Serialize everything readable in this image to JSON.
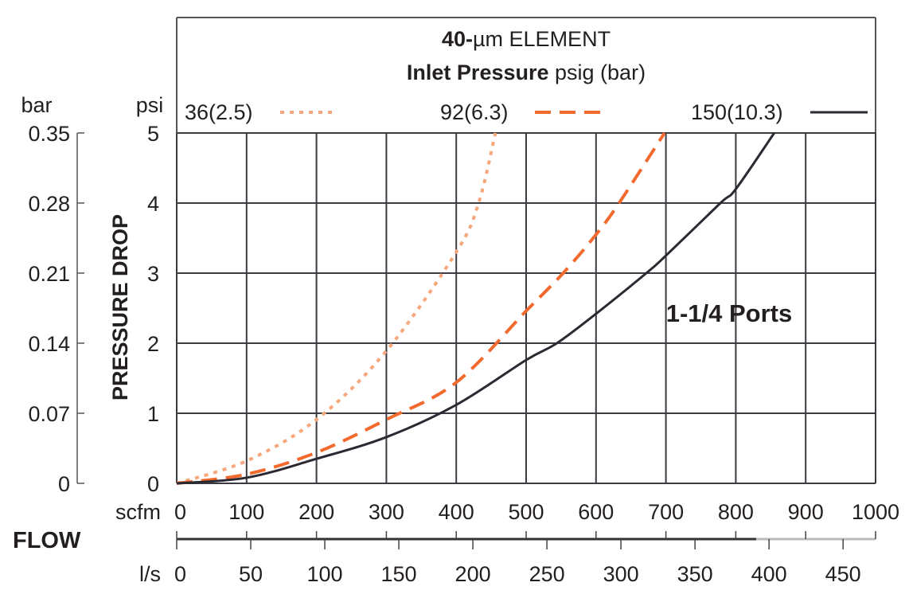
{
  "chart_data": {
    "type": "line",
    "title_line1_bold": "40-",
    "title_line1_unit": "µm",
    "title_line1_rest": " ELEMENT",
    "title_line2_bold": "Inlet Pressure",
    "title_line2_rest": " psig (bar)",
    "annotation": "1-1/4 Ports",
    "ylabel": "PRESSURE DROP",
    "y_unit_psi": "psi",
    "y_unit_bar": "bar",
    "xlabel": "FLOW",
    "x_unit_scfm": "scfm",
    "x_unit_ls": "l/s",
    "xlim": [
      0,
      1000
    ],
    "ylim": [
      0,
      5
    ],
    "grid": true,
    "legend_position": "top",
    "x_ticks_scfm": [
      "0",
      "100",
      "200",
      "300",
      "400",
      "500",
      "600",
      "700",
      "800",
      "900",
      "1000"
    ],
    "x_ticks_ls": [
      "0",
      "50",
      "100",
      "150",
      "200",
      "250",
      "300",
      "350",
      "400",
      "450"
    ],
    "y_ticks_psi": [
      "0",
      "1",
      "2",
      "3",
      "4",
      "5"
    ],
    "y_ticks_bar": [
      "0",
      "0.07",
      "0.14",
      "0.21",
      "0.28",
      "0.35"
    ],
    "series": [
      {
        "name": "36(2.5)",
        "style": "dotted",
        "color": "#f7a77c",
        "x": [
          0,
          100,
          200,
          300,
          400,
          432,
          456
        ],
        "y": [
          0,
          0.32,
          0.91,
          1.89,
          3.3,
          4,
          5
        ]
      },
      {
        "name": "92(6.3)",
        "style": "dashed",
        "color": "#f26a2e",
        "x": [
          0,
          100,
          200,
          300,
          400,
          500,
          553,
          600,
          633,
          698
        ],
        "y": [
          0,
          0.13,
          0.44,
          0.91,
          1.44,
          2.46,
          3,
          3.55,
          4,
          5
        ]
      },
      {
        "name": "150(10.3)",
        "style": "solid",
        "color": "#2b2a33",
        "x": [
          0,
          100,
          200,
          300,
          400,
          500,
          544,
          600,
          672,
          700,
          778,
          800,
          855
        ],
        "y": [
          0,
          0.08,
          0.35,
          0.66,
          1.12,
          1.76,
          2,
          2.42,
          3,
          3.25,
          4,
          4.2,
          5
        ]
      }
    ]
  }
}
